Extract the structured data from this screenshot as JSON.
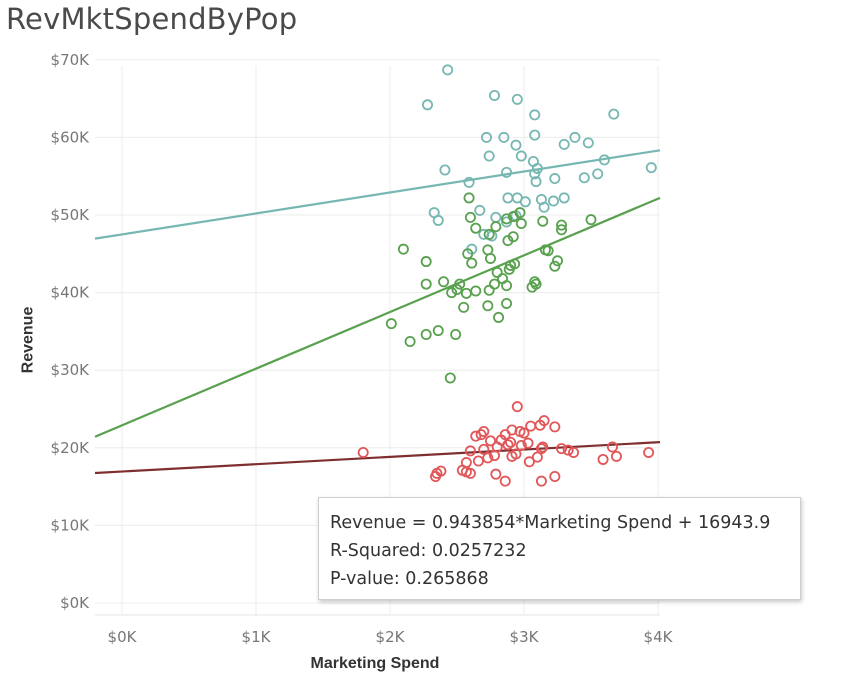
{
  "title": "RevMktSpendByPop",
  "chart_data": {
    "type": "scatter",
    "title": "RevMktSpendByPop",
    "xlabel": "Marketing Spend",
    "ylabel": "Revenue",
    "xlim": [
      -200,
      4200
    ],
    "ylim": [
      -1000,
      70000
    ],
    "grid": true,
    "x_ticks": [
      {
        "value": 0,
        "label": "$0K"
      },
      {
        "value": 1000,
        "label": "$1K"
      },
      {
        "value": 2000,
        "label": "$2K"
      },
      {
        "value": 3000,
        "label": "$3K"
      },
      {
        "value": 4000,
        "label": "$4K"
      }
    ],
    "y_ticks": [
      {
        "value": 0,
        "label": "$0K"
      },
      {
        "value": 10000,
        "label": "$10K"
      },
      {
        "value": 20000,
        "label": "$20K"
      },
      {
        "value": 30000,
        "label": "$30K"
      },
      {
        "value": 40000,
        "label": "$40K"
      },
      {
        "value": 50000,
        "label": "$50K"
      },
      {
        "value": 60000,
        "label": "$60K"
      },
      {
        "value": 70000,
        "label": "$70K"
      }
    ],
    "series": [
      {
        "color": "#76b7b2",
        "trend": {
          "slope": 2.7,
          "intercept": 47500
        },
        "points": [
          [
            2430,
            68700
          ],
          [
            2280,
            64200
          ],
          [
            2780,
            65400
          ],
          [
            2950,
            64900
          ],
          [
            3080,
            62900
          ],
          [
            3670,
            63000
          ],
          [
            2850,
            60000
          ],
          [
            2720,
            60000
          ],
          [
            3080,
            60300
          ],
          [
            3380,
            60000
          ],
          [
            3300,
            59100
          ],
          [
            3480,
            59300
          ],
          [
            2940,
            59000
          ],
          [
            2980,
            57600
          ],
          [
            3070,
            56900
          ],
          [
            3100,
            56000
          ],
          [
            2870,
            55500
          ],
          [
            3080,
            55300
          ],
          [
            3230,
            54700
          ],
          [
            3450,
            54800
          ],
          [
            3550,
            55300
          ],
          [
            3600,
            57100
          ],
          [
            3950,
            56100
          ],
          [
            2410,
            55800
          ],
          [
            2590,
            54200
          ],
          [
            2740,
            57600
          ],
          [
            3090,
            54300
          ],
          [
            3150,
            51000
          ],
          [
            3220,
            51800
          ],
          [
            2880,
            52200
          ],
          [
            2950,
            52200
          ],
          [
            3010,
            51700
          ],
          [
            3300,
            52200
          ],
          [
            2670,
            50600
          ],
          [
            2870,
            49100
          ],
          [
            2940,
            49900
          ],
          [
            3130,
            52000
          ],
          [
            2330,
            50300
          ],
          [
            2360,
            49300
          ],
          [
            2610,
            45600
          ],
          [
            2700,
            47500
          ],
          [
            2760,
            47300
          ],
          [
            2790,
            49700
          ]
        ]
      },
      {
        "color": "#59a14f",
        "trend": {
          "slope": 7.3,
          "intercept": 22900
        },
        "points": [
          [
            2590,
            52200
          ],
          [
            2600,
            49700
          ],
          [
            2640,
            48300
          ],
          [
            2790,
            48500
          ],
          [
            2870,
            49500
          ],
          [
            2920,
            49800
          ],
          [
            2970,
            50300
          ],
          [
            2980,
            48900
          ],
          [
            3140,
            49200
          ],
          [
            3280,
            48700
          ],
          [
            3280,
            48100
          ],
          [
            3500,
            49400
          ],
          [
            2100,
            45600
          ],
          [
            2270,
            44000
          ],
          [
            2580,
            45000
          ],
          [
            2730,
            45500
          ],
          [
            2750,
            44400
          ],
          [
            2740,
            47500
          ],
          [
            2880,
            46700
          ],
          [
            2920,
            47200
          ],
          [
            3160,
            45500
          ],
          [
            3180,
            45400
          ],
          [
            3230,
            43400
          ],
          [
            3250,
            44100
          ],
          [
            2610,
            43800
          ],
          [
            2800,
            42600
          ],
          [
            2840,
            41800
          ],
          [
            2890,
            43000
          ],
          [
            2900,
            43500
          ],
          [
            2930,
            43700
          ],
          [
            2500,
            40400
          ],
          [
            2520,
            41100
          ],
          [
            2570,
            39900
          ],
          [
            2640,
            40200
          ],
          [
            2740,
            40300
          ],
          [
            2780,
            41100
          ],
          [
            2870,
            40900
          ],
          [
            3080,
            41400
          ],
          [
            3090,
            41100
          ],
          [
            3060,
            40700
          ],
          [
            2270,
            41100
          ],
          [
            2400,
            41400
          ],
          [
            2460,
            40000
          ],
          [
            2550,
            38100
          ],
          [
            2730,
            38300
          ],
          [
            2870,
            38600
          ],
          [
            2010,
            36000
          ],
          [
            2150,
            33700
          ],
          [
            2270,
            34600
          ],
          [
            2360,
            35100
          ],
          [
            2490,
            34600
          ],
          [
            2810,
            36800
          ],
          [
            2450,
            29000
          ]
        ]
      },
      {
        "color": "#e15759",
        "trend": {
          "slope": 0.943854,
          "intercept": 16943.9
        },
        "points": [
          [
            2950,
            25300
          ],
          [
            3150,
            23500
          ],
          [
            3050,
            22800
          ],
          [
            3120,
            22900
          ],
          [
            3230,
            22700
          ],
          [
            2700,
            22100
          ],
          [
            2860,
            21700
          ],
          [
            2910,
            22300
          ],
          [
            2970,
            22100
          ],
          [
            3000,
            21900
          ],
          [
            2640,
            21500
          ],
          [
            2680,
            21700
          ],
          [
            2750,
            20900
          ],
          [
            2830,
            21000
          ],
          [
            2900,
            20700
          ],
          [
            2800,
            20100
          ],
          [
            2700,
            19800
          ],
          [
            2600,
            19600
          ],
          [
            2880,
            20400
          ],
          [
            2980,
            20300
          ],
          [
            3030,
            20600
          ],
          [
            3140,
            20100
          ],
          [
            3280,
            19900
          ],
          [
            3330,
            19700
          ],
          [
            3370,
            19400
          ],
          [
            3590,
            18500
          ],
          [
            3660,
            20100
          ],
          [
            3690,
            18900
          ],
          [
            3930,
            19400
          ],
          [
            1800,
            19400
          ],
          [
            2570,
            18100
          ],
          [
            2660,
            18300
          ],
          [
            2780,
            19000
          ],
          [
            2910,
            18900
          ],
          [
            2940,
            19200
          ],
          [
            3040,
            18200
          ],
          [
            3100,
            18800
          ],
          [
            3130,
            19900
          ],
          [
            2350,
            16700
          ],
          [
            2380,
            17000
          ],
          [
            2540,
            17100
          ],
          [
            2600,
            16700
          ],
          [
            2730,
            18700
          ],
          [
            2860,
            15700
          ],
          [
            3130,
            15700
          ],
          [
            3230,
            16300
          ],
          [
            2340,
            16300
          ],
          [
            2790,
            16600
          ],
          [
            2570,
            16900
          ]
        ]
      }
    ]
  },
  "tooltip": {
    "line1": "Revenue = 0.943854*Marketing Spend + 16943.9",
    "line2": "R-Squared: 0.0257232",
    "line3": "P-value: 0.265868"
  }
}
